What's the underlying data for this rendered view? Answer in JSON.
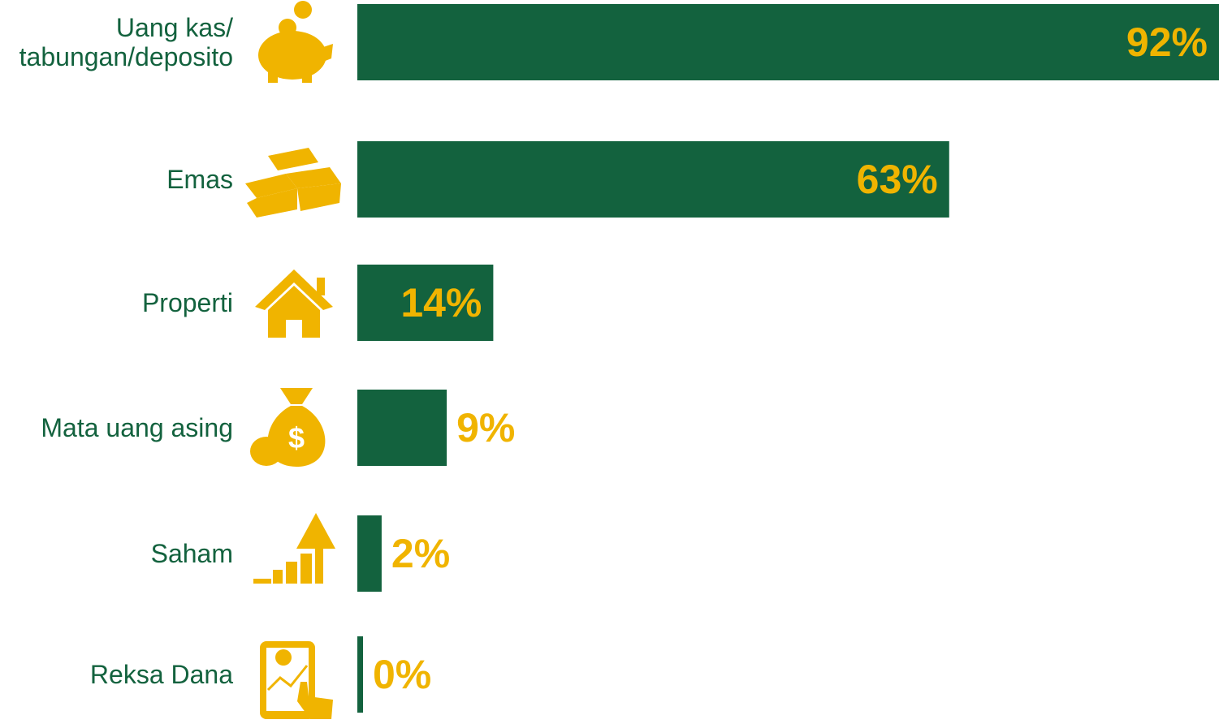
{
  "chart_data": {
    "type": "bar",
    "orientation": "horizontal",
    "categories": [
      "Uang kas/\ntabungan/deposito",
      "Emas",
      "Properti",
      "Mata uang asing",
      "Saham",
      "Reksa Dana"
    ],
    "values": [
      92,
      63,
      14,
      9,
      2,
      0
    ],
    "value_labels": [
      "92%",
      "63%",
      "14%",
      "9%",
      "2%",
      "0%"
    ],
    "color": "#13623e",
    "label_color": "#f0b400"
  }
}
